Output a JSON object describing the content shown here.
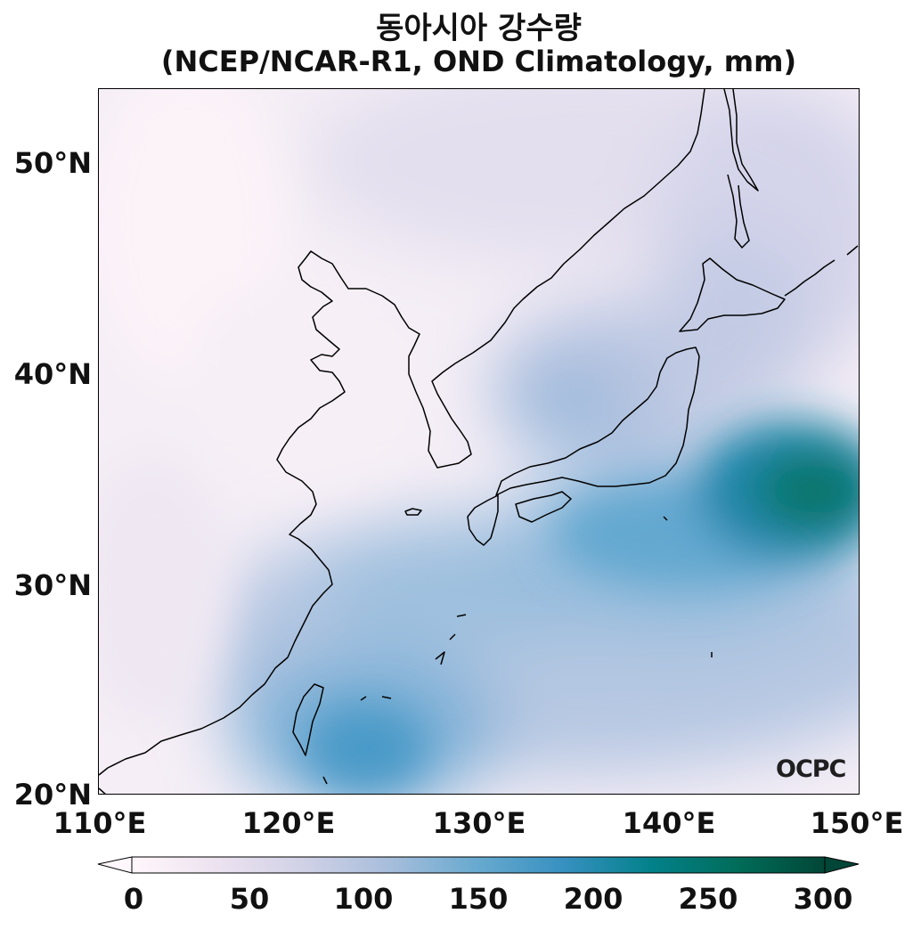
{
  "title": {
    "line1": "동아시아 강수량",
    "line2": "(NCEP/NCAR-R1, OND Climatology, mm)"
  },
  "map": {
    "region": "East Asia",
    "lon_range": [
      110,
      150
    ],
    "lat_range": [
      20,
      53.5
    ],
    "x_ticks": [
      "110°E",
      "120°E",
      "130°E",
      "140°E",
      "150°E"
    ],
    "y_ticks": [
      "50°N",
      "40°N",
      "30°N",
      "20°N"
    ],
    "watermark": "OCPC",
    "colormap": "PuBuGn",
    "colors": {
      "low": "#fff7fb",
      "mid": "#a6bddb",
      "high": "#3690c0",
      "max": "#016c59"
    }
  },
  "colorbar": {
    "ticks": [
      "0",
      "50",
      "100",
      "150",
      "200",
      "250",
      "300"
    ],
    "min": 0,
    "max": 300,
    "extend": "both"
  }
}
